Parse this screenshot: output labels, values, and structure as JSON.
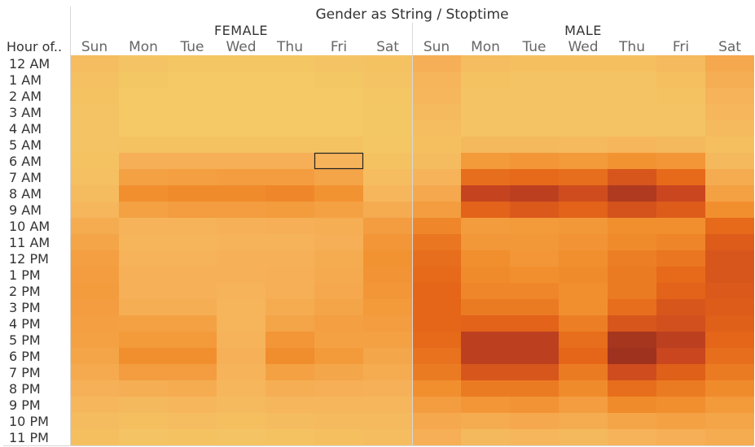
{
  "chart_data": {
    "type": "heatmap",
    "title": "Gender as String / Stoptime",
    "row_header": "Hour of..",
    "groups": [
      "FEMALE",
      "MALE"
    ],
    "days": [
      "Sun",
      "Mon",
      "Tue",
      "Wed",
      "Thu",
      "Fri",
      "Sat"
    ],
    "hours": [
      "12 AM",
      "1 AM",
      "2 AM",
      "3 AM",
      "4 AM",
      "5 AM",
      "6 AM",
      "7 AM",
      "8 AM",
      "9 AM",
      "10 AM",
      "11 AM",
      "12 PM",
      "1 PM",
      "2 PM",
      "3 PM",
      "4 PM",
      "5 PM",
      "6 PM",
      "7 PM",
      "8 PM",
      "9 PM",
      "10 PM",
      "11 PM"
    ],
    "values": {
      "FEMALE": [
        [
          0.13,
          0.08,
          0.07,
          0.07,
          0.07,
          0.08,
          0.1
        ],
        [
          0.11,
          0.06,
          0.05,
          0.05,
          0.05,
          0.06,
          0.08
        ],
        [
          0.1,
          0.05,
          0.05,
          0.05,
          0.05,
          0.05,
          0.07
        ],
        [
          0.09,
          0.05,
          0.05,
          0.05,
          0.05,
          0.05,
          0.06
        ],
        [
          0.08,
          0.05,
          0.05,
          0.05,
          0.05,
          0.05,
          0.06
        ],
        [
          0.08,
          0.1,
          0.1,
          0.1,
          0.1,
          0.1,
          0.07
        ],
        [
          0.1,
          0.22,
          0.22,
          0.22,
          0.22,
          0.2,
          0.1
        ],
        [
          0.11,
          0.3,
          0.31,
          0.32,
          0.32,
          0.28,
          0.13
        ],
        [
          0.14,
          0.4,
          0.42,
          0.42,
          0.44,
          0.38,
          0.17
        ],
        [
          0.18,
          0.3,
          0.32,
          0.32,
          0.33,
          0.3,
          0.24
        ],
        [
          0.24,
          0.2,
          0.2,
          0.21,
          0.22,
          0.23,
          0.32
        ],
        [
          0.28,
          0.19,
          0.19,
          0.2,
          0.2,
          0.22,
          0.36
        ],
        [
          0.31,
          0.2,
          0.2,
          0.21,
          0.21,
          0.24,
          0.38
        ],
        [
          0.32,
          0.21,
          0.21,
          0.21,
          0.22,
          0.25,
          0.37
        ],
        [
          0.33,
          0.21,
          0.21,
          0.2,
          0.22,
          0.26,
          0.36
        ],
        [
          0.32,
          0.23,
          0.23,
          0.19,
          0.24,
          0.28,
          0.34
        ],
        [
          0.31,
          0.3,
          0.3,
          0.19,
          0.28,
          0.31,
          0.32
        ],
        [
          0.3,
          0.34,
          0.34,
          0.2,
          0.36,
          0.3,
          0.3
        ],
        [
          0.28,
          0.4,
          0.4,
          0.21,
          0.41,
          0.34,
          0.27
        ],
        [
          0.25,
          0.32,
          0.32,
          0.2,
          0.3,
          0.27,
          0.24
        ],
        [
          0.21,
          0.23,
          0.24,
          0.18,
          0.23,
          0.22,
          0.21
        ],
        [
          0.17,
          0.16,
          0.18,
          0.15,
          0.18,
          0.18,
          0.18
        ],
        [
          0.14,
          0.12,
          0.13,
          0.12,
          0.14,
          0.15,
          0.15
        ],
        [
          0.12,
          0.09,
          0.1,
          0.09,
          0.1,
          0.12,
          0.13
        ]
      ],
      "MALE": [
        [
          0.22,
          0.13,
          0.12,
          0.12,
          0.12,
          0.15,
          0.26
        ],
        [
          0.19,
          0.1,
          0.09,
          0.09,
          0.09,
          0.12,
          0.23
        ],
        [
          0.17,
          0.09,
          0.08,
          0.08,
          0.08,
          0.1,
          0.2
        ],
        [
          0.15,
          0.08,
          0.08,
          0.08,
          0.08,
          0.09,
          0.18
        ],
        [
          0.13,
          0.08,
          0.08,
          0.08,
          0.08,
          0.08,
          0.15
        ],
        [
          0.12,
          0.16,
          0.16,
          0.15,
          0.17,
          0.16,
          0.12
        ],
        [
          0.14,
          0.34,
          0.36,
          0.34,
          0.38,
          0.36,
          0.16
        ],
        [
          0.2,
          0.56,
          0.58,
          0.56,
          0.7,
          0.58,
          0.24
        ],
        [
          0.26,
          0.82,
          0.86,
          0.76,
          0.92,
          0.8,
          0.3
        ],
        [
          0.32,
          0.62,
          0.68,
          0.62,
          0.72,
          0.66,
          0.4
        ],
        [
          0.44,
          0.33,
          0.34,
          0.35,
          0.4,
          0.4,
          0.58
        ],
        [
          0.52,
          0.35,
          0.35,
          0.37,
          0.42,
          0.45,
          0.66
        ],
        [
          0.56,
          0.4,
          0.36,
          0.4,
          0.48,
          0.52,
          0.7
        ],
        [
          0.58,
          0.42,
          0.4,
          0.42,
          0.5,
          0.58,
          0.7
        ],
        [
          0.6,
          0.44,
          0.44,
          0.4,
          0.5,
          0.62,
          0.68
        ],
        [
          0.6,
          0.5,
          0.5,
          0.4,
          0.56,
          0.7,
          0.66
        ],
        [
          0.6,
          0.62,
          0.62,
          0.48,
          0.7,
          0.74,
          0.64
        ],
        [
          0.58,
          0.86,
          0.86,
          0.56,
          0.96,
          0.86,
          0.6
        ],
        [
          0.54,
          0.86,
          0.86,
          0.6,
          1.0,
          0.8,
          0.56
        ],
        [
          0.5,
          0.7,
          0.7,
          0.5,
          0.76,
          0.64,
          0.5
        ],
        [
          0.4,
          0.5,
          0.5,
          0.42,
          0.56,
          0.5,
          0.42
        ],
        [
          0.32,
          0.36,
          0.37,
          0.32,
          0.42,
          0.4,
          0.34
        ],
        [
          0.26,
          0.24,
          0.26,
          0.24,
          0.28,
          0.3,
          0.28
        ],
        [
          0.22,
          0.16,
          0.18,
          0.16,
          0.2,
          0.22,
          0.24
        ]
      ]
    },
    "highlighted_cell": {
      "group": "FEMALE",
      "day": "Fri",
      "hour": "6 AM"
    },
    "color_scale": [
      "#f3d06a",
      "#f6b35a",
      "#f18f2e",
      "#e56618",
      "#c9461f",
      "#9e321f"
    ]
  }
}
